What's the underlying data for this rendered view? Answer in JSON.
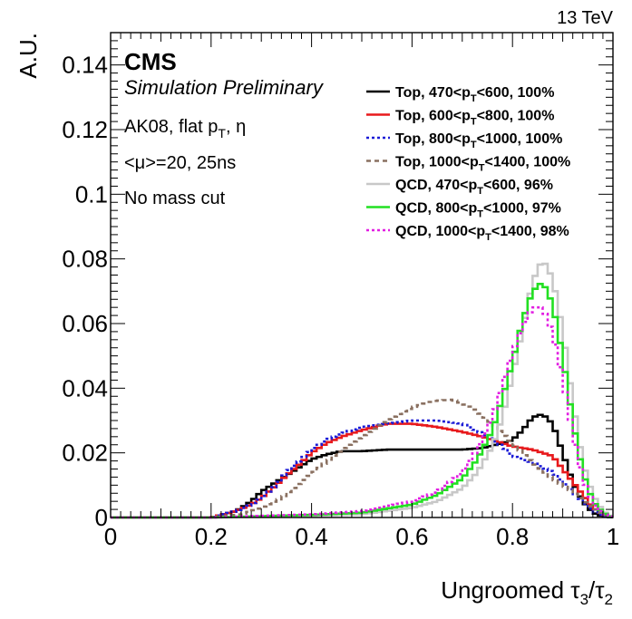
{
  "energy": "13 TeV",
  "experiment": "CMS",
  "status": "Simulation Preliminary",
  "info": [
    {
      "pre": "AK08, flat p",
      "sub": "T",
      "post": ", η"
    },
    {
      "pre": "<μ>=20, 25ns",
      "sub": "",
      "post": ""
    },
    {
      "pre": "No mass cut",
      "sub": "",
      "post": ""
    }
  ],
  "chart_data": {
    "type": "line",
    "xlabel": "Ungroomed τ3/τ2",
    "xlabel_parts": {
      "pre": "Ungroomed τ",
      "sub1": "3",
      "mid": "/τ",
      "sub2": "2"
    },
    "ylabel": "A.U.",
    "xlim": [
      0,
      1
    ],
    "ylim": [
      0,
      0.15
    ],
    "x_ticks": [
      "0",
      "0.2",
      "0.4",
      "0.6",
      "0.8",
      "1"
    ],
    "x_tick_values": [
      0,
      0.2,
      0.4,
      0.6,
      0.8,
      1.0
    ],
    "y_ticks": [
      "0",
      "0.02",
      "0.04",
      "0.06",
      "0.08",
      "0.1",
      "0.12",
      "0.14"
    ],
    "y_tick_values": [
      0,
      0.02,
      0.04,
      0.06,
      0.08,
      0.1,
      0.12,
      0.14
    ],
    "legend_position": "top-right",
    "grid": false,
    "series": [
      {
        "name": "Top, 470<pT<600, 100%",
        "legend": {
          "pre": "Top, 470<p",
          "sub": "T",
          "post": "<600, 100%"
        },
        "color": "#000000",
        "dash": "",
        "points": [
          [
            0.2,
            0
          ],
          [
            0.25,
            0.002
          ],
          [
            0.28,
            0.005
          ],
          [
            0.3,
            0.008
          ],
          [
            0.33,
            0.011
          ],
          [
            0.35,
            0.013
          ],
          [
            0.38,
            0.016
          ],
          [
            0.4,
            0.018
          ],
          [
            0.43,
            0.0195
          ],
          [
            0.46,
            0.0205
          ],
          [
            0.5,
            0.0205
          ],
          [
            0.55,
            0.021
          ],
          [
            0.6,
            0.021
          ],
          [
            0.65,
            0.021
          ],
          [
            0.7,
            0.021
          ],
          [
            0.74,
            0.0215
          ],
          [
            0.78,
            0.023
          ],
          [
            0.8,
            0.024
          ],
          [
            0.82,
            0.027
          ],
          [
            0.84,
            0.031
          ],
          [
            0.86,
            0.032
          ],
          [
            0.88,
            0.029
          ],
          [
            0.9,
            0.02
          ],
          [
            0.92,
            0.011
          ],
          [
            0.94,
            0.005
          ],
          [
            0.96,
            0.0015
          ],
          [
            0.98,
            0.0003
          ],
          [
            1.0,
            0
          ]
        ]
      },
      {
        "name": "Top, 600<pT<800, 100%",
        "legend": {
          "pre": "Top, 600<p",
          "sub": "T",
          "post": "<800, 100%"
        },
        "color": "#e8191c",
        "dash": "",
        "points": [
          [
            0.2,
            0
          ],
          [
            0.25,
            0.002
          ],
          [
            0.28,
            0.004
          ],
          [
            0.3,
            0.006
          ],
          [
            0.33,
            0.01
          ],
          [
            0.35,
            0.013
          ],
          [
            0.38,
            0.017
          ],
          [
            0.4,
            0.02
          ],
          [
            0.43,
            0.023
          ],
          [
            0.46,
            0.025
          ],
          [
            0.5,
            0.027
          ],
          [
            0.55,
            0.029
          ],
          [
            0.6,
            0.029
          ],
          [
            0.65,
            0.028
          ],
          [
            0.7,
            0.0265
          ],
          [
            0.74,
            0.025
          ],
          [
            0.78,
            0.023
          ],
          [
            0.8,
            0.022
          ],
          [
            0.84,
            0.021
          ],
          [
            0.88,
            0.019
          ],
          [
            0.9,
            0.015
          ],
          [
            0.92,
            0.011
          ],
          [
            0.94,
            0.007
          ],
          [
            0.96,
            0.003
          ],
          [
            0.98,
            0.001
          ],
          [
            1.0,
            0
          ]
        ]
      },
      {
        "name": "Top, 800<pT<1000, 100%",
        "legend": {
          "pre": "Top, 800<p",
          "sub": "T",
          "post": "<1000, 100%"
        },
        "color": "#1a1ad6",
        "dash": "3,3",
        "points": [
          [
            0.2,
            0
          ],
          [
            0.25,
            0.002
          ],
          [
            0.28,
            0.004
          ],
          [
            0.3,
            0.006
          ],
          [
            0.33,
            0.01
          ],
          [
            0.35,
            0.014
          ],
          [
            0.38,
            0.018
          ],
          [
            0.4,
            0.021
          ],
          [
            0.43,
            0.024
          ],
          [
            0.46,
            0.026
          ],
          [
            0.5,
            0.028
          ],
          [
            0.55,
            0.029
          ],
          [
            0.6,
            0.03
          ],
          [
            0.65,
            0.03
          ],
          [
            0.7,
            0.029
          ],
          [
            0.74,
            0.026
          ],
          [
            0.78,
            0.022
          ],
          [
            0.8,
            0.019
          ],
          [
            0.84,
            0.017
          ],
          [
            0.88,
            0.014
          ],
          [
            0.9,
            0.011
          ],
          [
            0.92,
            0.008
          ],
          [
            0.94,
            0.005
          ],
          [
            0.96,
            0.002
          ],
          [
            0.98,
            0.0005
          ],
          [
            1.0,
            0
          ]
        ]
      },
      {
        "name": "Top, 1000<pT<1400, 100%",
        "legend": {
          "pre": "Top, 1000<p",
          "sub": "T",
          "post": "<1400, 100%"
        },
        "color": "#8a7060",
        "dash": "5,4",
        "points": [
          [
            0.2,
            0
          ],
          [
            0.26,
            0.001
          ],
          [
            0.3,
            0.003
          ],
          [
            0.34,
            0.006
          ],
          [
            0.38,
            0.011
          ],
          [
            0.42,
            0.016
          ],
          [
            0.46,
            0.021
          ],
          [
            0.5,
            0.025
          ],
          [
            0.55,
            0.03
          ],
          [
            0.6,
            0.034
          ],
          [
            0.64,
            0.036
          ],
          [
            0.68,
            0.0365
          ],
          [
            0.72,
            0.034
          ],
          [
            0.76,
            0.029
          ],
          [
            0.8,
            0.023
          ],
          [
            0.84,
            0.017
          ],
          [
            0.88,
            0.012
          ],
          [
            0.92,
            0.008
          ],
          [
            0.95,
            0.004
          ],
          [
            0.98,
            0.001
          ],
          [
            1.0,
            0
          ]
        ]
      },
      {
        "name": "QCD, 470<pT<600, 96%",
        "legend": {
          "pre": "QCD, 470<p",
          "sub": "T",
          "post": "<600, 96%"
        },
        "color": "#c8c8c8",
        "dash": "",
        "points": [
          [
            0.2,
            0
          ],
          [
            0.4,
            0.0005
          ],
          [
            0.5,
            0.001
          ],
          [
            0.6,
            0.003
          ],
          [
            0.65,
            0.005
          ],
          [
            0.7,
            0.009
          ],
          [
            0.73,
            0.014
          ],
          [
            0.76,
            0.022
          ],
          [
            0.78,
            0.031
          ],
          [
            0.8,
            0.044
          ],
          [
            0.82,
            0.058
          ],
          [
            0.84,
            0.073
          ],
          [
            0.86,
            0.08
          ],
          [
            0.88,
            0.074
          ],
          [
            0.9,
            0.058
          ],
          [
            0.92,
            0.036
          ],
          [
            0.94,
            0.017
          ],
          [
            0.96,
            0.007
          ],
          [
            0.98,
            0.002
          ],
          [
            1.0,
            0
          ]
        ]
      },
      {
        "name": "QCD, 800<pT<1000, 97%",
        "legend": {
          "pre": "QCD, 800<p",
          "sub": "T",
          "post": "<1000, 97%"
        },
        "color": "#22e022",
        "dash": "",
        "points": [
          [
            0.2,
            0
          ],
          [
            0.4,
            0.0008
          ],
          [
            0.5,
            0.0015
          ],
          [
            0.6,
            0.004
          ],
          [
            0.65,
            0.007
          ],
          [
            0.7,
            0.012
          ],
          [
            0.73,
            0.018
          ],
          [
            0.76,
            0.027
          ],
          [
            0.78,
            0.037
          ],
          [
            0.8,
            0.048
          ],
          [
            0.82,
            0.061
          ],
          [
            0.84,
            0.07
          ],
          [
            0.86,
            0.073
          ],
          [
            0.88,
            0.066
          ],
          [
            0.9,
            0.05
          ],
          [
            0.92,
            0.03
          ],
          [
            0.94,
            0.014
          ],
          [
            0.96,
            0.005
          ],
          [
            0.98,
            0.0015
          ],
          [
            1.0,
            0
          ]
        ]
      },
      {
        "name": "QCD, 1000<pT<1400, 98%",
        "legend": {
          "pre": "QCD, 1000<p",
          "sub": "T",
          "post": "<1400, 98%"
        },
        "color": "#e21ee2",
        "dash": "3,3",
        "points": [
          [
            0.2,
            0
          ],
          [
            0.4,
            0.001
          ],
          [
            0.5,
            0.002
          ],
          [
            0.6,
            0.005
          ],
          [
            0.65,
            0.008
          ],
          [
            0.7,
            0.014
          ],
          [
            0.73,
            0.021
          ],
          [
            0.76,
            0.031
          ],
          [
            0.78,
            0.041
          ],
          [
            0.8,
            0.051
          ],
          [
            0.82,
            0.059
          ],
          [
            0.84,
            0.065
          ],
          [
            0.86,
            0.065
          ],
          [
            0.88,
            0.057
          ],
          [
            0.9,
            0.043
          ],
          [
            0.92,
            0.026
          ],
          [
            0.94,
            0.012
          ],
          [
            0.96,
            0.0045
          ],
          [
            0.98,
            0.0012
          ],
          [
            1.0,
            0
          ]
        ]
      }
    ]
  }
}
